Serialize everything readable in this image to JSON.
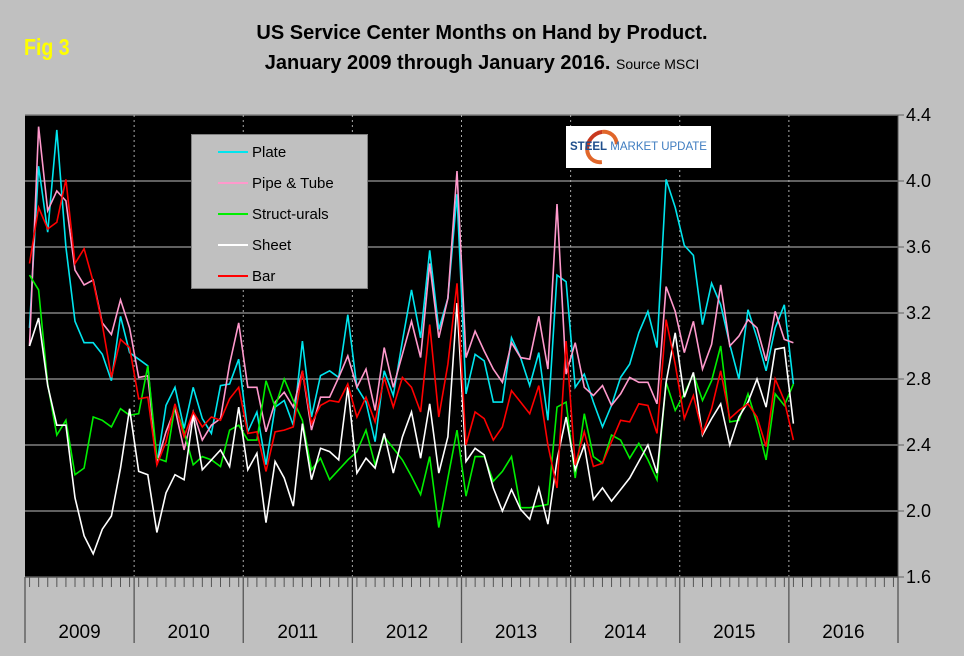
{
  "figure_label": "Fig 3",
  "title_line1": "US Service Center Months on Hand by Product.",
  "title_line2": "January 2009 through January 2016.",
  "source": "Source MSCI",
  "logo": {
    "word1": "STEEL",
    "word2": "MARKET UPDATE"
  },
  "colors": {
    "background": "#c0c0c0",
    "plot": "#000000",
    "Plate": "#00e5ee",
    "Pipe & Tube": "#ff99cc",
    "Struct-urals": "#00ee00",
    "Sheet": "#ffffff",
    "Bar": "#ff0000"
  },
  "chart_data": {
    "type": "line",
    "title": "US Service Center Months on Hand by Product. January 2009 through January 2016.",
    "x_start": "2009-01",
    "x_end": "2016-01",
    "x_frequency": "monthly",
    "year_labels": [
      "2009",
      "2010",
      "2011",
      "2012",
      "2013",
      "2014",
      "2015",
      "2016"
    ],
    "y_ticks": [
      "4.4",
      "4.0",
      "3.6",
      "3.2",
      "2.8",
      "2.4",
      "2.0",
      "1.6"
    ],
    "ylim": [
      1.6,
      4.4
    ],
    "y_axis_side": "right",
    "grid": true,
    "legend_position": "top-left",
    "series": [
      {
        "name": "Plate",
        "color": "#00e5ee",
        "values": [
          3.11,
          4.09,
          3.69,
          4.31,
          3.6,
          3.15,
          3.02,
          3.02,
          2.95,
          2.79,
          3.18,
          2.96,
          2.92,
          2.88,
          2.28,
          2.64,
          2.75,
          2.5,
          2.75,
          2.56,
          2.47,
          2.76,
          2.77,
          2.92,
          2.48,
          2.6,
          2.28,
          2.63,
          2.67,
          2.52,
          3.03,
          2.57,
          2.82,
          2.85,
          2.81,
          3.19,
          2.75,
          2.66,
          2.42,
          2.85,
          2.7,
          3.03,
          3.34,
          3.05,
          3.58,
          3.1,
          3.29,
          3.92,
          2.71,
          2.95,
          2.91,
          2.66,
          2.66,
          3.05,
          2.93,
          2.76,
          2.96,
          2.55,
          3.43,
          3.39,
          2.75,
          2.83,
          2.66,
          2.51,
          2.64,
          2.81,
          2.89,
          3.08,
          3.21,
          2.99,
          4.01,
          3.84,
          3.61,
          3.55,
          3.13,
          3.38,
          3.25,
          3.01,
          2.8,
          3.22,
          3.05,
          2.85,
          3.11,
          3.25,
          2.77
        ]
      },
      {
        "name": "Pipe & Tube",
        "color": "#ff99cc",
        "values": [
          3.0,
          4.33,
          3.82,
          3.94,
          3.88,
          3.46,
          3.37,
          3.4,
          3.14,
          3.07,
          3.28,
          3.11,
          2.81,
          2.82,
          2.29,
          2.48,
          2.62,
          2.37,
          2.6,
          2.43,
          2.52,
          2.56,
          2.89,
          3.14,
          2.75,
          2.75,
          2.48,
          2.66,
          2.72,
          2.63,
          2.85,
          2.49,
          2.69,
          2.69,
          2.81,
          2.94,
          2.75,
          2.86,
          2.61,
          2.99,
          2.75,
          2.95,
          3.15,
          2.93,
          3.5,
          3.05,
          3.29,
          4.06,
          2.93,
          3.09,
          2.97,
          2.86,
          2.78,
          3.02,
          2.93,
          2.92,
          3.18,
          2.86,
          3.86,
          2.83,
          3.02,
          2.75,
          2.7,
          2.76,
          2.64,
          2.71,
          2.81,
          2.78,
          2.78,
          2.65,
          3.36,
          3.21,
          2.96,
          3.15,
          2.86,
          3.01,
          3.37,
          3.0,
          3.06,
          3.16,
          3.11,
          2.91,
          3.21,
          3.04,
          3.02
        ]
      },
      {
        "name": "Struct-urals",
        "color": "#00ee00",
        "values": [
          3.43,
          3.34,
          2.77,
          2.46,
          2.55,
          2.22,
          2.26,
          2.57,
          2.55,
          2.51,
          2.62,
          2.58,
          2.59,
          2.88,
          2.32,
          2.3,
          2.64,
          2.48,
          2.28,
          2.33,
          2.31,
          2.27,
          2.49,
          2.52,
          2.43,
          2.43,
          2.79,
          2.63,
          2.8,
          2.67,
          2.55,
          2.25,
          2.32,
          2.19,
          2.25,
          2.31,
          2.36,
          2.49,
          2.28,
          2.45,
          2.38,
          2.31,
          2.21,
          2.1,
          2.33,
          1.9,
          2.2,
          2.49,
          2.09,
          2.33,
          2.33,
          2.18,
          2.24,
          2.33,
          2.02,
          2.02,
          2.03,
          2.04,
          2.63,
          2.66,
          2.2,
          2.59,
          2.33,
          2.29,
          2.46,
          2.43,
          2.32,
          2.41,
          2.31,
          2.19,
          2.78,
          2.61,
          2.71,
          2.83,
          2.67,
          2.79,
          3.0,
          2.54,
          2.55,
          2.71,
          2.53,
          2.31,
          2.71,
          2.64,
          2.77
        ]
      },
      {
        "name": "Sheet",
        "color": "#ffffff",
        "values": [
          3.0,
          3.17,
          2.76,
          2.52,
          2.52,
          2.08,
          1.85,
          1.74,
          1.89,
          1.97,
          2.26,
          2.62,
          2.24,
          2.22,
          1.87,
          2.11,
          2.22,
          2.19,
          2.58,
          2.25,
          2.31,
          2.37,
          2.27,
          2.63,
          2.25,
          2.35,
          1.93,
          2.3,
          2.2,
          2.03,
          2.53,
          2.19,
          2.38,
          2.36,
          2.31,
          2.75,
          2.23,
          2.32,
          2.26,
          2.47,
          2.23,
          2.45,
          2.6,
          2.32,
          2.65,
          2.23,
          2.45,
          3.26,
          2.3,
          2.38,
          2.34,
          2.14,
          2.0,
          2.13,
          2.01,
          1.95,
          2.14,
          1.92,
          2.31,
          2.57,
          2.25,
          2.4,
          2.07,
          2.14,
          2.06,
          2.13,
          2.2,
          2.3,
          2.4,
          2.23,
          2.78,
          3.08,
          2.69,
          2.84,
          2.46,
          2.56,
          2.65,
          2.4,
          2.57,
          2.66,
          2.8,
          2.63,
          2.98,
          2.99,
          2.53
        ]
      },
      {
        "name": "Bar",
        "color": "#ff0000",
        "values": [
          3.5,
          3.84,
          3.71,
          3.75,
          4.01,
          3.5,
          3.59,
          3.39,
          3.13,
          2.81,
          3.04,
          2.99,
          2.68,
          2.69,
          2.28,
          2.42,
          2.65,
          2.45,
          2.6,
          2.51,
          2.57,
          2.55,
          2.68,
          2.75,
          2.47,
          2.48,
          2.24,
          2.48,
          2.49,
          2.51,
          2.85,
          2.53,
          2.64,
          2.67,
          2.66,
          2.77,
          2.57,
          2.69,
          2.54,
          2.81,
          2.63,
          2.81,
          2.75,
          2.6,
          3.13,
          2.57,
          2.89,
          3.38,
          2.4,
          2.6,
          2.56,
          2.43,
          2.51,
          2.73,
          2.66,
          2.59,
          2.76,
          2.4,
          2.14,
          3.03,
          2.28,
          2.48,
          2.27,
          2.29,
          2.42,
          2.55,
          2.54,
          2.65,
          2.64,
          2.47,
          3.16,
          2.89,
          2.56,
          2.7,
          2.47,
          2.62,
          2.85,
          2.56,
          2.61,
          2.65,
          2.57,
          2.39,
          2.8,
          2.67,
          2.43
        ]
      }
    ]
  }
}
